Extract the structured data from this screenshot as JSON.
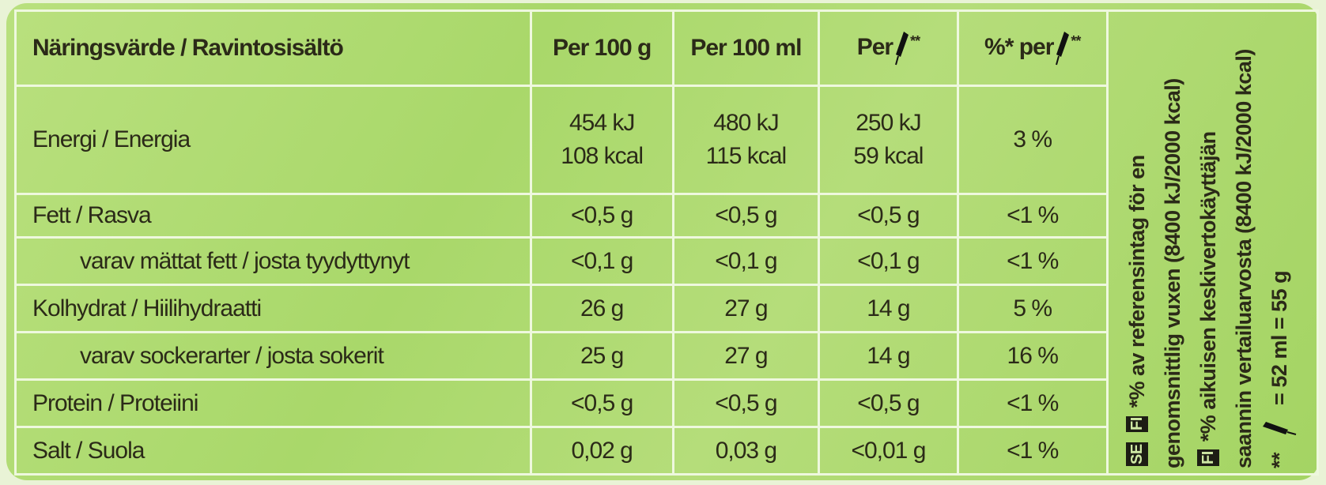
{
  "table": {
    "header": {
      "label": "Näringsvärde / Ravintosisältö",
      "columns": [
        "Per 100 g",
        "Per 100 ml",
        {
          "prefix": "Per",
          "suffix": "**"
        },
        {
          "prefix": "%* per",
          "suffix": "**"
        }
      ]
    },
    "rows": [
      {
        "label": "Energi / Energia",
        "cells": [
          [
            "454 kJ",
            "108 kcal"
          ],
          [
            "480 kJ",
            "115 kcal"
          ],
          [
            "250 kJ",
            "59 kcal"
          ],
          "3 %"
        ]
      },
      {
        "label": "Fett / Rasva",
        "cells": [
          "<0,5 g",
          "<0,5 g",
          "<0,5 g",
          "<1 %"
        ]
      },
      {
        "label": "varav mättat fett / josta tyydyttynyt",
        "cells": [
          "<0,1 g",
          "<0,1 g",
          "<0,1 g",
          "<1 %"
        ]
      },
      {
        "label": "Kolhydrat / Hiilihydraatti",
        "cells": [
          "26 g",
          "27 g",
          "14 g",
          "5 %"
        ]
      },
      {
        "label": "varav sockerarter / josta sokerit",
        "cells": [
          "25 g",
          "27 g",
          "14 g",
          "16 %"
        ]
      },
      {
        "label": "Protein / Proteiini",
        "cells": [
          "<0,5 g",
          "<0,5 g",
          "<0,5 g",
          "<1 %"
        ]
      },
      {
        "label": "Salt / Suola",
        "cells": [
          "0,02 g",
          "0,03 g",
          "<0,01 g",
          "<1 %"
        ]
      }
    ]
  },
  "notes": {
    "se_badge": "SE",
    "fi_badge": "FI",
    "se_text": [
      "*% av referensintag för en",
      "genomsnittlig vuxen (8400 kJ/2000 kcal)"
    ],
    "fi_badge_2": "FI",
    "fi_text": [
      "*% aikuisen keskivertokäyttäjän",
      "saannin vertailuarvosta (8400 kJ/2000 kcal)"
    ],
    "portion_prefix": "**",
    "portion_text": "= 52 ml = 55 g"
  }
}
